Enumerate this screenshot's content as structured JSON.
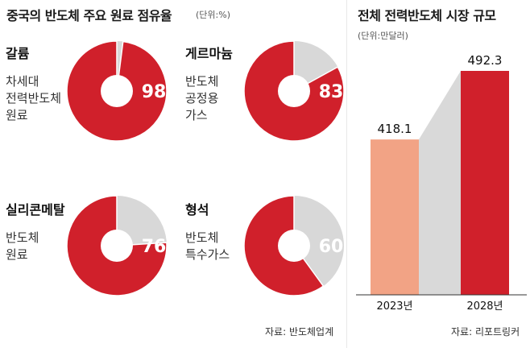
{
  "left": {
    "title": "중국의 반도체 주요 원료 점유율",
    "unit": "(단위:%)",
    "source": "자료: 반도체업계"
  },
  "right": {
    "title": "전체 전력반도체 시장 규모",
    "unit": "(단위:만달러)",
    "source": "자료: 리포트링커"
  },
  "colors": {
    "red": "#d0202b",
    "grey": "#d8d8d8",
    "salmon": "#f2a385",
    "ribbon": "#d9d9d9"
  },
  "chart_data": [
    {
      "type": "pie",
      "title": "중국의 반도체 주요 원료 점유율",
      "unit": "(단위:%)",
      "items": [
        {
          "name": "갈륨",
          "desc": [
            "차세대",
            "전력반도체",
            "원료"
          ],
          "value": 98,
          "label": "98"
        },
        {
          "name": "게르마늄",
          "desc": [
            "반도체",
            "공정용",
            "가스"
          ],
          "value": 83,
          "label": "83"
        },
        {
          "name": "실리콘메탈",
          "desc": [
            "반도체",
            "원료"
          ],
          "value": 76,
          "label": "76"
        },
        {
          "name": "형석",
          "desc": [
            "반도체",
            "특수가스"
          ],
          "value": 60,
          "label": "60"
        }
      ]
    },
    {
      "type": "bar",
      "title": "전체 전력반도체 시장 규모",
      "unit": "(단위:만달러)",
      "categories": [
        "2023년",
        "2028년"
      ],
      "values": [
        418.1,
        492.3
      ],
      "labels": [
        "418.1",
        "492.3"
      ]
    }
  ]
}
